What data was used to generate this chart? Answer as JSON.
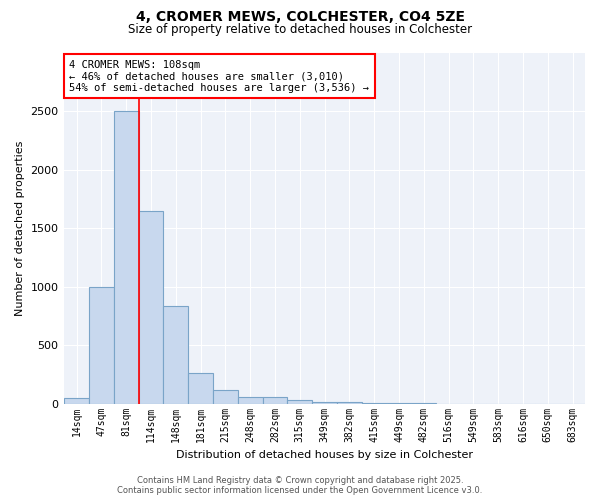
{
  "title_line1": "4, CROMER MEWS, COLCHESTER, CO4 5ZE",
  "title_line2": "Size of property relative to detached houses in Colchester",
  "xlabel": "Distribution of detached houses by size in Colchester",
  "ylabel": "Number of detached properties",
  "bar_categories": [
    "14sqm",
    "47sqm",
    "81sqm",
    "114sqm",
    "148sqm",
    "181sqm",
    "215sqm",
    "248sqm",
    "282sqm",
    "315sqm",
    "349sqm",
    "382sqm",
    "415sqm",
    "449sqm",
    "482sqm",
    "516sqm",
    "549sqm",
    "583sqm",
    "616sqm",
    "650sqm",
    "683sqm"
  ],
  "bar_values": [
    50,
    1000,
    2500,
    1650,
    830,
    260,
    120,
    60,
    55,
    30,
    15,
    10,
    5,
    3,
    2,
    1,
    1,
    0,
    0,
    0,
    1
  ],
  "bar_color": "#c8d8ee",
  "bar_edge_color": "#7aa4c8",
  "annotation_line1": "4 CROMER MEWS: 108sqm",
  "annotation_line2": "← 46% of detached houses are smaller (3,010)",
  "annotation_line3": "54% of semi-detached houses are larger (3,536) →",
  "red_line_x": 2.5,
  "ylim": [
    0,
    3000
  ],
  "yticks": [
    0,
    500,
    1000,
    1500,
    2000,
    2500
  ],
  "bg_color": "#eef2f9",
  "grid_color": "#ffffff",
  "footer_line1": "Contains HM Land Registry data © Crown copyright and database right 2025.",
  "footer_line2": "Contains public sector information licensed under the Open Government Licence v3.0."
}
